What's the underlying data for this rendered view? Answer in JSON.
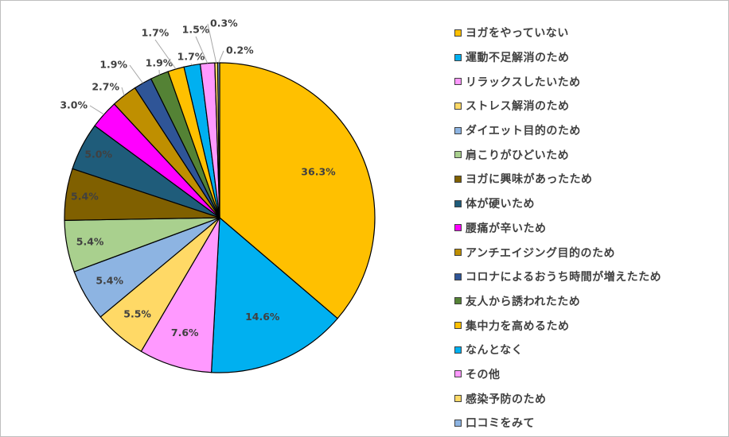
{
  "chart_data": {
    "type": "pie",
    "categories": [
      "ヨガをやっていない",
      "運動不足解消のため",
      "リラックスしたいため",
      "ストレス解消のため",
      "ダイエット目的のため",
      "肩こりがひどいため",
      "ヨガに興味があったため",
      "体が硬いため",
      "腰痛が辛いため",
      "アンチエイジング目的のため",
      "コロナによるおうち時間が増えたため",
      "友人から誘われたため",
      "集中力を高めるため",
      "なんとなく",
      "その他",
      "感染予防のため",
      "口コミをみて"
    ],
    "values": [
      36.3,
      14.6,
      7.6,
      5.5,
      5.4,
      5.4,
      5.4,
      5.0,
      3.0,
      2.7,
      1.9,
      1.9,
      1.7,
      1.7,
      1.5,
      0.3,
      0.2
    ],
    "value_labels": [
      "36.3%",
      "14.6%",
      "7.6%",
      "5.5%",
      "5.4%",
      "5.4%",
      "5.4%",
      "5.0%",
      "3.0%",
      "2.7%",
      "1.9%",
      "1.9%",
      "1.7%",
      "1.7%",
      "1.5%",
      "0.3%",
      "0.2%"
    ],
    "colors": [
      "#FFC000",
      "#00B0F0",
      "#FF99FF",
      "#FFD966",
      "#8DB4E2",
      "#A9D08E",
      "#806000",
      "#1F5C7A",
      "#FF00FF",
      "#BF8F00",
      "#2F5597",
      "#548235",
      "#FFC000",
      "#00B0F0",
      "#FF99FF",
      "#FFD966",
      "#8DB4E2"
    ],
    "legend_position": "right",
    "title": ""
  }
}
